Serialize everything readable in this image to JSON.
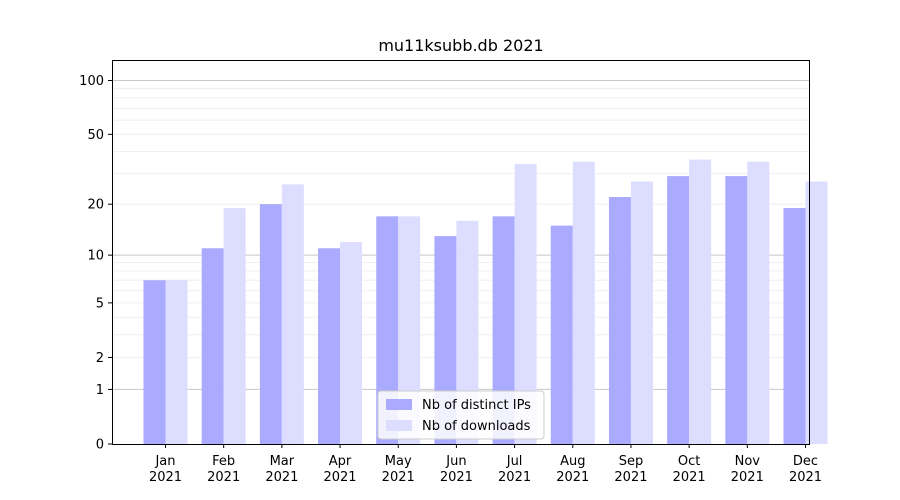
{
  "chart_data": {
    "type": "bar",
    "title": "mu11ksubb.db 2021",
    "xlabel": "",
    "ylabel": "",
    "yscale": "log(1+y)",
    "ylim": [
      0,
      130
    ],
    "y_ticks": [
      0,
      1,
      2,
      5,
      10,
      20,
      50,
      100
    ],
    "categories": [
      [
        "Jan",
        "2021"
      ],
      [
        "Feb",
        "2021"
      ],
      [
        "Mar",
        "2021"
      ],
      [
        "Apr",
        "2021"
      ],
      [
        "May",
        "2021"
      ],
      [
        "Jun",
        "2021"
      ],
      [
        "Jul",
        "2021"
      ],
      [
        "Aug",
        "2021"
      ],
      [
        "Sep",
        "2021"
      ],
      [
        "Oct",
        "2021"
      ],
      [
        "Nov",
        "2021"
      ],
      [
        "Dec",
        "2021"
      ]
    ],
    "series": [
      {
        "name": "Nb of distinct IPs",
        "color": "#aaaaff",
        "values": [
          7,
          11,
          20,
          11,
          17,
          13,
          17,
          15,
          22,
          29,
          29,
          19
        ]
      },
      {
        "name": "Nb of downloads",
        "color": "#ddddff",
        "values": [
          7,
          19,
          26,
          12,
          17,
          16,
          34,
          35,
          27,
          36,
          35,
          27
        ]
      }
    ],
    "legend_position": "bottom-center",
    "grid": "horizontal"
  }
}
